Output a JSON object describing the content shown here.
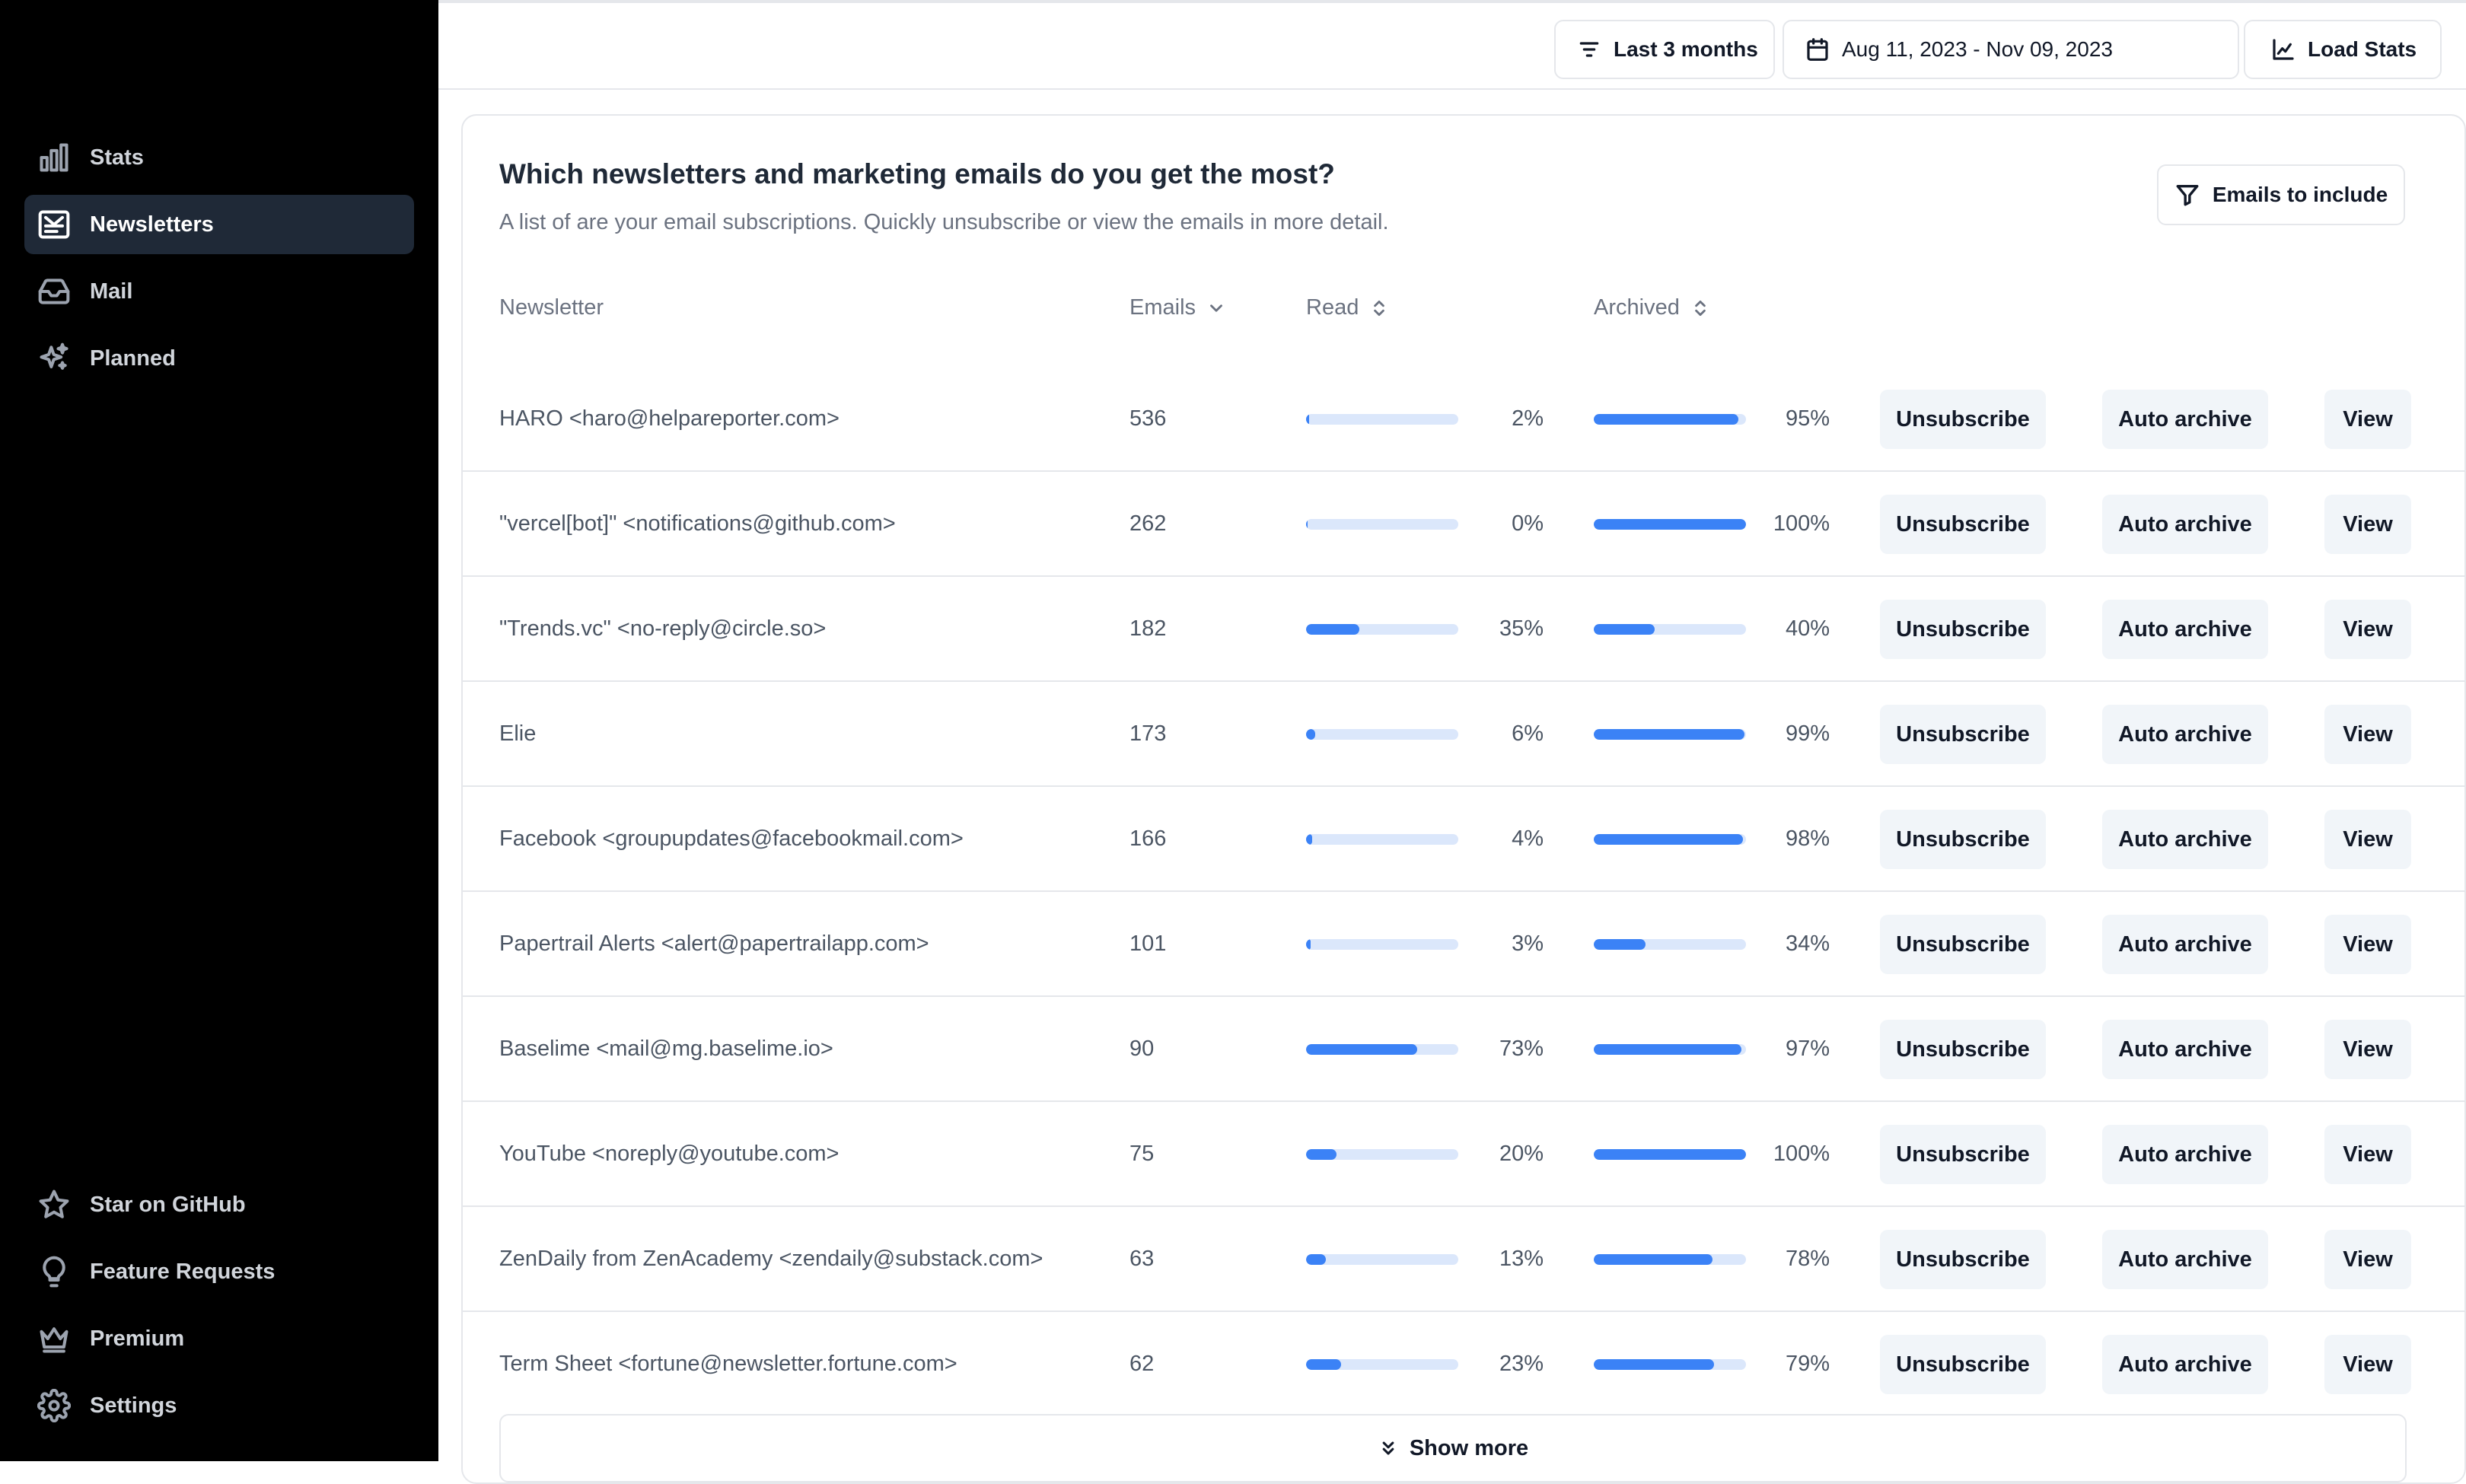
{
  "sidebar": {
    "items": [
      {
        "label": "Stats",
        "icon": "bar-chart-icon"
      },
      {
        "label": "Newsletters",
        "icon": "newsletter-icon",
        "active": true
      },
      {
        "label": "Mail",
        "icon": "inbox-icon"
      },
      {
        "label": "Planned",
        "icon": "sparkles-icon"
      }
    ],
    "bottom_items": [
      {
        "label": "Star on GitHub",
        "icon": "star-icon"
      },
      {
        "label": "Feature Requests",
        "icon": "lightbulb-icon"
      },
      {
        "label": "Premium",
        "icon": "crown-icon"
      },
      {
        "label": "Settings",
        "icon": "gear-icon"
      }
    ]
  },
  "topbar": {
    "range_label": "Last 3 months",
    "date_label": "Aug 11, 2023 - Nov 09, 2023",
    "load_label": "Load Stats"
  },
  "card": {
    "title": "Which newsletters and marketing emails do you get the most?",
    "subtitle": "A list of are your email subscriptions. Quickly unsubscribe or view the emails in more detail.",
    "filter_label": "Emails to include",
    "headers": {
      "newsletter": "Newsletter",
      "emails": "Emails",
      "read": "Read",
      "archived": "Archived"
    },
    "actions": {
      "unsubscribe": "Unsubscribe",
      "auto_archive": "Auto archive",
      "view": "View"
    },
    "show_more": "Show more"
  },
  "rows": [
    {
      "name": "HARO <haro@helpareporter.com>",
      "emails": "536",
      "read": 2,
      "read_label": "2%",
      "archived": 95,
      "archived_label": "95%"
    },
    {
      "name": "\"vercel[bot]\" <notifications@github.com>",
      "emails": "262",
      "read": 0,
      "read_label": "0%",
      "archived": 100,
      "archived_label": "100%"
    },
    {
      "name": "\"Trends.vc\" <no-reply@circle.so>",
      "emails": "182",
      "read": 35,
      "read_label": "35%",
      "archived": 40,
      "archived_label": "40%"
    },
    {
      "name": "Elie",
      "emails": "173",
      "read": 6,
      "read_label": "6%",
      "archived": 99,
      "archived_label": "99%"
    },
    {
      "name": "Facebook <groupupdates@facebookmail.com>",
      "emails": "166",
      "read": 4,
      "read_label": "4%",
      "archived": 98,
      "archived_label": "98%"
    },
    {
      "name": "Papertrail Alerts <alert@papertrailapp.com>",
      "emails": "101",
      "read": 3,
      "read_label": "3%",
      "archived": 34,
      "archived_label": "34%"
    },
    {
      "name": "Baselime <mail@mg.baselime.io>",
      "emails": "90",
      "read": 73,
      "read_label": "73%",
      "archived": 97,
      "archived_label": "97%"
    },
    {
      "name": "YouTube <noreply@youtube.com>",
      "emails": "75",
      "read": 20,
      "read_label": "20%",
      "archived": 100,
      "archived_label": "100%"
    },
    {
      "name": "ZenDaily from ZenAcademy <zendaily@substack.com>",
      "emails": "63",
      "read": 13,
      "read_label": "13%",
      "archived": 78,
      "archived_label": "78%"
    },
    {
      "name": "Term Sheet <fortune@newsletter.fortune.com>",
      "emails": "62",
      "read": 23,
      "read_label": "23%",
      "archived": 79,
      "archived_label": "79%"
    }
  ]
}
